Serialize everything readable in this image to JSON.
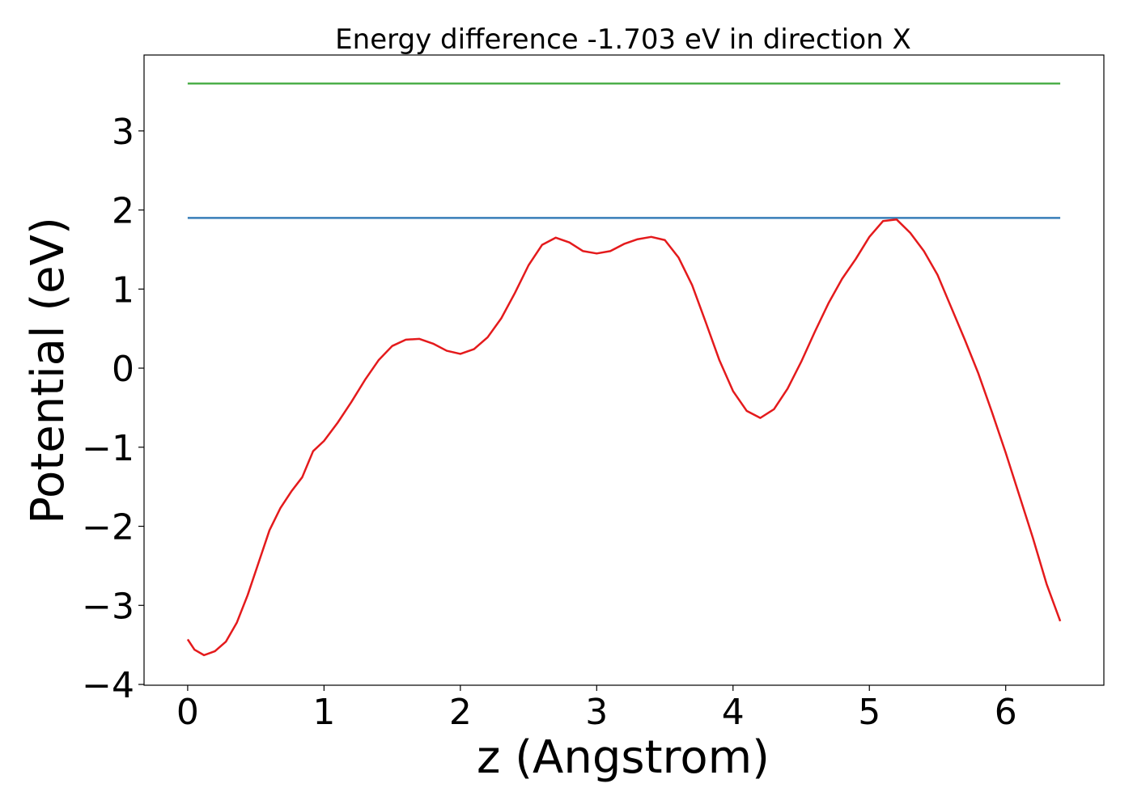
{
  "chart_data": {
    "type": "line",
    "title": "Energy difference -1.703 eV in direction X",
    "xlabel": "z (Angstrom)",
    "ylabel": "Potential (eV)",
    "xlim": [
      -0.32,
      6.72
    ],
    "ylim": [
      -4.01,
      3.96
    ],
    "xticks": [
      0,
      1,
      2,
      3,
      4,
      5,
      6
    ],
    "yticks": [
      {
        "value": -4,
        "label": "−4"
      },
      {
        "value": -3,
        "label": "−3"
      },
      {
        "value": -2,
        "label": "−2"
      },
      {
        "value": -1,
        "label": "−1"
      },
      0,
      1,
      2,
      3
    ],
    "grid": false,
    "series": [
      {
        "color": "#4daf4a",
        "x": [
          0,
          6.4
        ],
        "values": [
          3.6,
          3.6
        ]
      },
      {
        "color": "#377eb8",
        "x": [
          0,
          6.4
        ],
        "values": [
          1.9,
          1.9
        ]
      },
      {
        "color": "#e41a1c",
        "x": [
          0,
          0.05,
          0.12,
          0.2,
          0.28,
          0.36,
          0.44,
          0.52,
          0.6,
          0.68,
          0.76,
          0.84,
          0.92,
          1.0,
          1.1,
          1.2,
          1.3,
          1.4,
          1.5,
          1.6,
          1.7,
          1.8,
          1.9,
          2.0,
          2.1,
          2.2,
          2.3,
          2.4,
          2.5,
          2.6,
          2.7,
          2.8,
          2.9,
          3.0,
          3.1,
          3.2,
          3.3,
          3.4,
          3.5,
          3.6,
          3.7,
          3.8,
          3.9,
          4.0,
          4.1,
          4.2,
          4.3,
          4.4,
          4.5,
          4.6,
          4.7,
          4.8,
          4.9,
          5.0,
          5.1,
          5.2,
          5.3,
          5.4,
          5.5,
          5.6,
          5.7,
          5.8,
          5.9,
          6.0,
          6.1,
          6.2,
          6.3,
          6.4
        ],
        "values": [
          -3.43,
          -3.56,
          -3.63,
          -3.58,
          -3.46,
          -3.22,
          -2.87,
          -2.46,
          -2.05,
          -1.77,
          -1.56,
          -1.38,
          -1.05,
          -0.92,
          -0.69,
          -0.43,
          -0.15,
          0.1,
          0.28,
          0.36,
          0.37,
          0.31,
          0.22,
          0.18,
          0.24,
          0.39,
          0.63,
          0.95,
          1.3,
          1.56,
          1.65,
          1.59,
          1.48,
          1.45,
          1.48,
          1.57,
          1.63,
          1.66,
          1.62,
          1.4,
          1.05,
          0.58,
          0.1,
          -0.29,
          -0.54,
          -0.63,
          -0.52,
          -0.26,
          0.08,
          0.46,
          0.82,
          1.13,
          1.38,
          1.66,
          1.86,
          1.88,
          1.71,
          1.48,
          1.18,
          0.77,
          0.36,
          -0.07,
          -0.56,
          -1.07,
          -1.61,
          -2.15,
          -2.73,
          -3.2
        ]
      }
    ]
  }
}
